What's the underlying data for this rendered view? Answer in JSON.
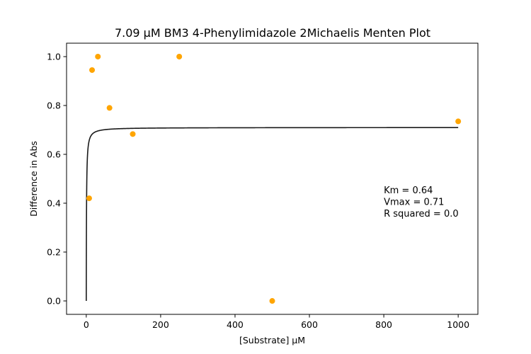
{
  "chart_data": {
    "type": "scatter",
    "title": "7.09 µM BM3 4-Phenylimidazole 2Michaelis Menten Plot",
    "xlabel": "[Substrate] µM",
    "ylabel": "Difference in Abs",
    "xlim": [
      -53,
      1053
    ],
    "ylim": [
      -0.055,
      1.055
    ],
    "x_ticks": [
      0,
      200,
      400,
      600,
      800,
      1000
    ],
    "x_tick_labels": [
      "0",
      "200",
      "400",
      "600",
      "800",
      "1000"
    ],
    "y_ticks": [
      0.0,
      0.2,
      0.4,
      0.6,
      0.8,
      1.0
    ],
    "y_tick_labels": [
      "0.0",
      "0.2",
      "0.4",
      "0.6",
      "0.8",
      "1.0"
    ],
    "grid": false,
    "series": [
      {
        "kind": "points",
        "color": "#ffa500",
        "x": [
          7.8,
          15.6,
          31.25,
          62.5,
          125,
          250,
          500,
          1000
        ],
        "y": [
          0.42,
          0.945,
          1.0,
          0.79,
          0.683,
          1.0,
          0.0,
          0.735
        ]
      },
      {
        "kind": "fit",
        "color": "#1a1a1a",
        "model": "michaelis-menten",
        "km": 0.64,
        "vmax": 0.71,
        "x_range": [
          0,
          1000
        ]
      }
    ],
    "annotation": {
      "lines": [
        "Km = 0.64",
        "Vmax = 0.71",
        "R squared = 0.0"
      ],
      "x": 800,
      "y": 0.44
    }
  }
}
